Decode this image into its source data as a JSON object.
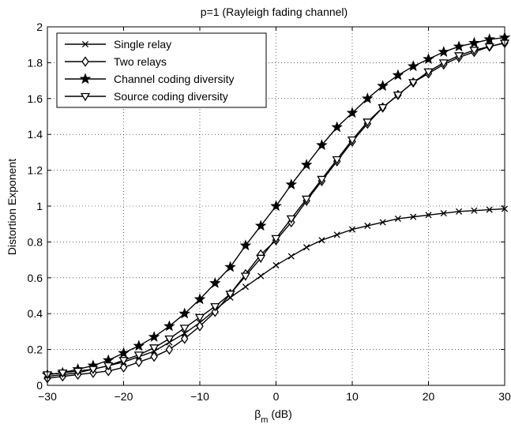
{
  "chart_data": {
    "type": "line",
    "title": "p=1 (Rayleigh fading channel)",
    "xlabel_main": "β",
    "xlabel_sub": "m",
    "xlabel_unit": " (dB)",
    "ylabel": "Distortion Exponent",
    "xlim": [
      -30,
      30
    ],
    "ylim": [
      0,
      2
    ],
    "xticks": [
      -30,
      -20,
      -10,
      0,
      10,
      20,
      30
    ],
    "xtick_labels": [
      "−30",
      "−20",
      "−10",
      "0",
      "10",
      "20",
      "30"
    ],
    "yticks": [
      0,
      0.2,
      0.4,
      0.6,
      0.8,
      1,
      1.2,
      1.4,
      1.6,
      1.8,
      2
    ],
    "ytick_labels": [
      "0",
      "0.2",
      "0.4",
      "0.6",
      "0.8",
      "1",
      "1.2",
      "1.4",
      "1.6",
      "1.8",
      "2"
    ],
    "grid": true,
    "legend_position": "top-left",
    "line_color": "#000000",
    "x": [
      -30,
      -28,
      -26,
      -24,
      -22,
      -20,
      -18,
      -16,
      -14,
      -12,
      -10,
      -8,
      -6,
      -4,
      -2,
      0,
      2,
      4,
      6,
      8,
      10,
      12,
      14,
      16,
      18,
      20,
      22,
      24,
      26,
      28,
      30
    ],
    "series": [
      {
        "name": "Single relay",
        "marker": "x",
        "values": [
          0.05,
          0.06,
          0.07,
          0.09,
          0.11,
          0.13,
          0.16,
          0.19,
          0.24,
          0.29,
          0.35,
          0.42,
          0.49,
          0.55,
          0.61,
          0.67,
          0.72,
          0.77,
          0.81,
          0.84,
          0.87,
          0.89,
          0.91,
          0.93,
          0.94,
          0.95,
          0.96,
          0.97,
          0.975,
          0.98,
          0.985
        ]
      },
      {
        "name": "Two relays",
        "marker": "diamond",
        "values": [
          0.04,
          0.05,
          0.06,
          0.07,
          0.08,
          0.1,
          0.13,
          0.16,
          0.2,
          0.26,
          0.33,
          0.41,
          0.51,
          0.62,
          0.73,
          0.81,
          0.91,
          1.03,
          1.14,
          1.25,
          1.36,
          1.46,
          1.55,
          1.62,
          1.69,
          1.74,
          1.79,
          1.83,
          1.86,
          1.89,
          1.91
        ]
      },
      {
        "name": "Channel coding diversity",
        "marker": "star",
        "values": [
          0.06,
          0.07,
          0.09,
          0.11,
          0.14,
          0.18,
          0.22,
          0.27,
          0.33,
          0.4,
          0.48,
          0.57,
          0.66,
          0.78,
          0.89,
          1.0,
          1.12,
          1.23,
          1.34,
          1.44,
          1.52,
          1.6,
          1.67,
          1.73,
          1.78,
          1.82,
          1.86,
          1.89,
          1.91,
          1.93,
          1.94
        ]
      },
      {
        "name": "Source coding diversity",
        "marker": "triangle-down",
        "values": [
          0.06,
          0.07,
          0.08,
          0.09,
          0.11,
          0.14,
          0.17,
          0.21,
          0.26,
          0.32,
          0.38,
          0.44,
          0.51,
          0.61,
          0.71,
          0.82,
          0.93,
          1.04,
          1.15,
          1.26,
          1.37,
          1.47,
          1.55,
          1.62,
          1.69,
          1.75,
          1.8,
          1.84,
          1.87,
          1.89,
          1.91
        ]
      }
    ]
  }
}
